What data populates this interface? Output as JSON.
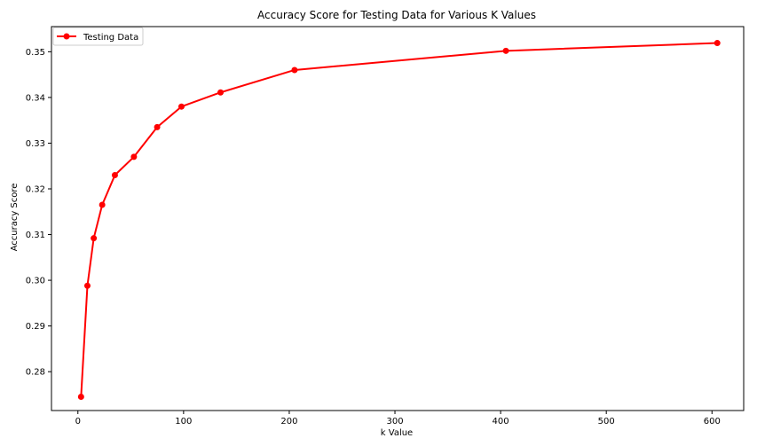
{
  "chart_data": {
    "type": "line",
    "title": "Accuracy Score for Testing Data for Various K Values",
    "xlabel": "k Value",
    "ylabel": "Accuracy Score",
    "xlim": [
      -25,
      630
    ],
    "ylim": [
      0.2715,
      0.3555
    ],
    "x_ticks": [
      0,
      100,
      200,
      300,
      400,
      500,
      600
    ],
    "y_ticks": [
      0.28,
      0.29,
      0.3,
      0.31,
      0.32,
      0.33,
      0.34,
      0.35
    ],
    "y_tick_labels": [
      "0.28",
      "0.29",
      "0.30",
      "0.31",
      "0.32",
      "0.33",
      "0.34",
      "0.35"
    ],
    "grid": false,
    "legend_position": "top-left",
    "series": [
      {
        "name": "Testing Data",
        "color": "#ff0000",
        "marker": "circle",
        "x": [
          3,
          9,
          15,
          23,
          35,
          53,
          75,
          98,
          135,
          205,
          405,
          605
        ],
        "y": [
          0.2745,
          0.2988,
          0.3092,
          0.3165,
          0.323,
          0.327,
          0.3335,
          0.338,
          0.3411,
          0.346,
          0.3502,
          0.3519
        ]
      }
    ]
  }
}
